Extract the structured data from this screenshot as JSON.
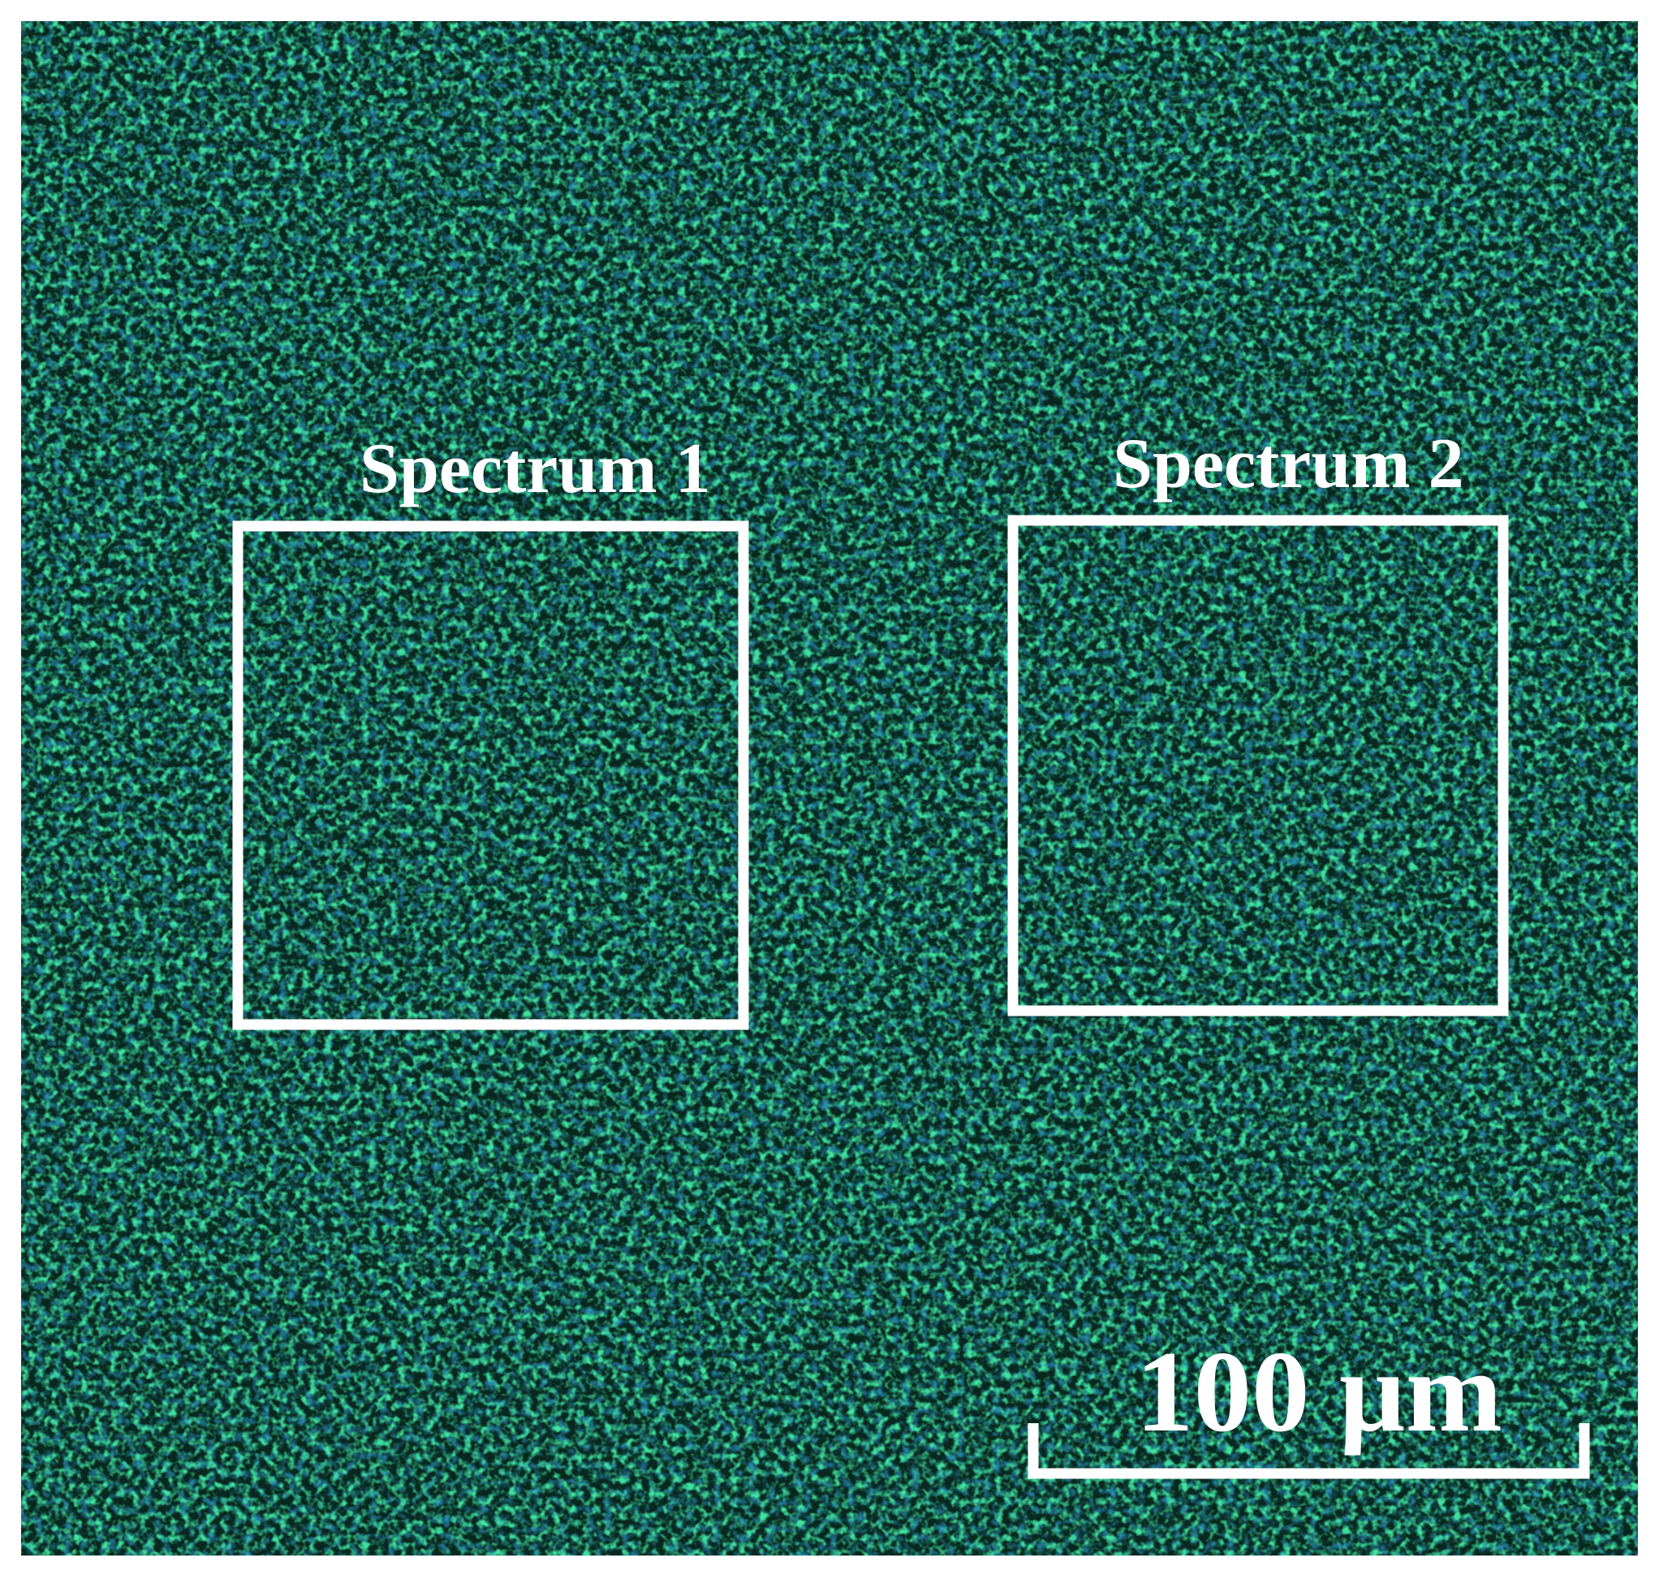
{
  "regions": [
    {
      "label": "Spectrum 1"
    },
    {
      "label": "Spectrum 2"
    }
  ],
  "scale_bar": {
    "label": "100 µm"
  }
}
